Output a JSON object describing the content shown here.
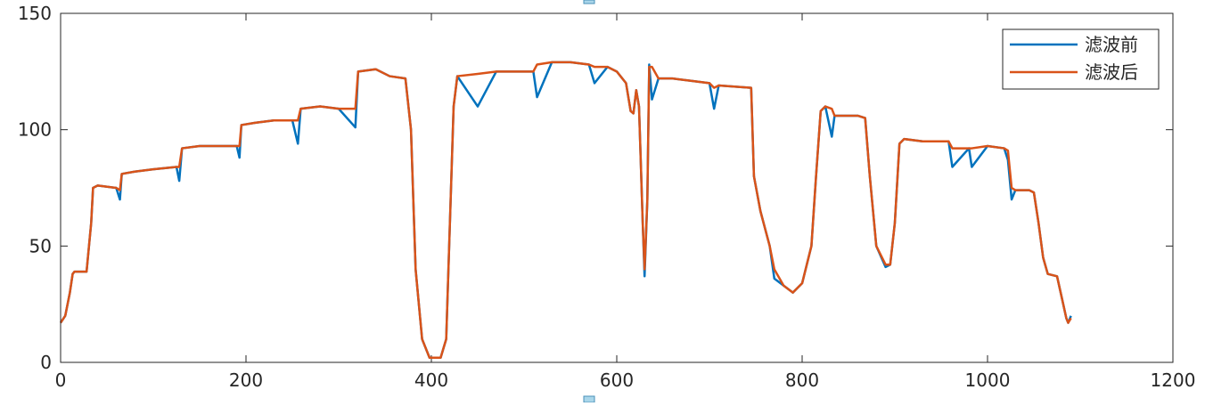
{
  "chart_data": {
    "type": "line",
    "x": [
      0,
      5,
      10,
      13,
      15,
      28,
      33,
      35,
      40,
      60,
      64,
      66,
      80,
      100,
      125,
      128,
      131,
      150,
      170,
      190,
      193,
      195,
      210,
      230,
      250,
      256,
      259,
      280,
      300,
      318,
      321,
      340,
      355,
      372,
      378,
      383,
      390,
      398,
      410,
      416,
      420,
      424,
      428,
      450,
      470,
      490,
      510,
      514,
      530,
      550,
      570,
      576,
      590,
      600,
      610,
      615,
      618,
      621,
      624,
      628,
      630,
      633,
      635,
      638,
      645,
      660,
      680,
      700,
      705,
      710,
      745,
      748,
      755,
      765,
      770,
      780,
      790,
      800,
      810,
      815,
      820,
      825,
      832,
      835,
      860,
      868,
      873,
      880,
      890,
      895,
      900,
      905,
      910,
      930,
      950,
      958,
      962,
      980,
      983,
      1000,
      1018,
      1022,
      1026,
      1030,
      1045,
      1050,
      1055,
      1060,
      1065,
      1075,
      1080,
      1085,
      1087,
      1090
    ],
    "series": [
      {
        "name": "滤波前",
        "color": "#0072BD",
        "values": [
          17,
          20,
          30,
          38,
          39,
          39,
          60,
          75,
          76,
          75,
          70,
          81,
          82,
          83,
          84,
          78,
          92,
          93,
          93,
          93,
          88,
          102,
          103,
          104,
          104,
          94,
          109,
          110,
          109,
          101,
          125,
          126,
          123,
          122,
          100,
          40,
          10,
          2,
          2,
          10,
          60,
          110,
          123,
          110,
          125,
          125,
          125,
          114,
          129,
          129,
          128,
          120,
          127,
          125,
          120,
          108,
          107,
          117,
          110,
          60,
          37,
          70,
          128,
          113,
          122,
          122,
          121,
          120,
          109,
          119,
          118,
          80,
          65,
          50,
          36,
          33,
          30,
          34,
          50,
          80,
          108,
          110,
          97,
          106,
          106,
          105,
          80,
          50,
          41,
          42,
          60,
          94,
          96,
          95,
          95,
          95,
          84,
          92,
          84,
          93,
          92,
          87,
          70,
          74,
          74,
          73,
          60,
          45,
          38,
          37,
          28,
          19,
          17,
          20
        ]
      },
      {
        "name": "滤波后",
        "color": "#D95319",
        "values": [
          17,
          20,
          30,
          38,
          39,
          39,
          60,
          75,
          76,
          75,
          74,
          81,
          82,
          83,
          84,
          84,
          92,
          93,
          93,
          93,
          93,
          102,
          103,
          104,
          104,
          104,
          109,
          110,
          109,
          109,
          125,
          126,
          123,
          122,
          100,
          40,
          10,
          2,
          2,
          10,
          60,
          110,
          123,
          124,
          125,
          125,
          125,
          128,
          129,
          129,
          128,
          127,
          127,
          125,
          120,
          108,
          107,
          117,
          110,
          60,
          40,
          70,
          127,
          127,
          122,
          122,
          121,
          120,
          118,
          119,
          118,
          80,
          65,
          50,
          40,
          33,
          30,
          34,
          50,
          80,
          108,
          110,
          109,
          106,
          106,
          105,
          80,
          50,
          42,
          42,
          60,
          94,
          96,
          95,
          95,
          95,
          92,
          92,
          92,
          93,
          92,
          91,
          75,
          74,
          74,
          73,
          60,
          45,
          38,
          37,
          28,
          19,
          17,
          19
        ]
      }
    ],
    "xlim": [
      0,
      1200
    ],
    "xticks": [
      0,
      200,
      400,
      600,
      800,
      1000,
      1200
    ],
    "ylim": [
      0,
      150
    ],
    "yticks": [
      0,
      50,
      100,
      150
    ],
    "grid": false,
    "legend": "northeast"
  }
}
